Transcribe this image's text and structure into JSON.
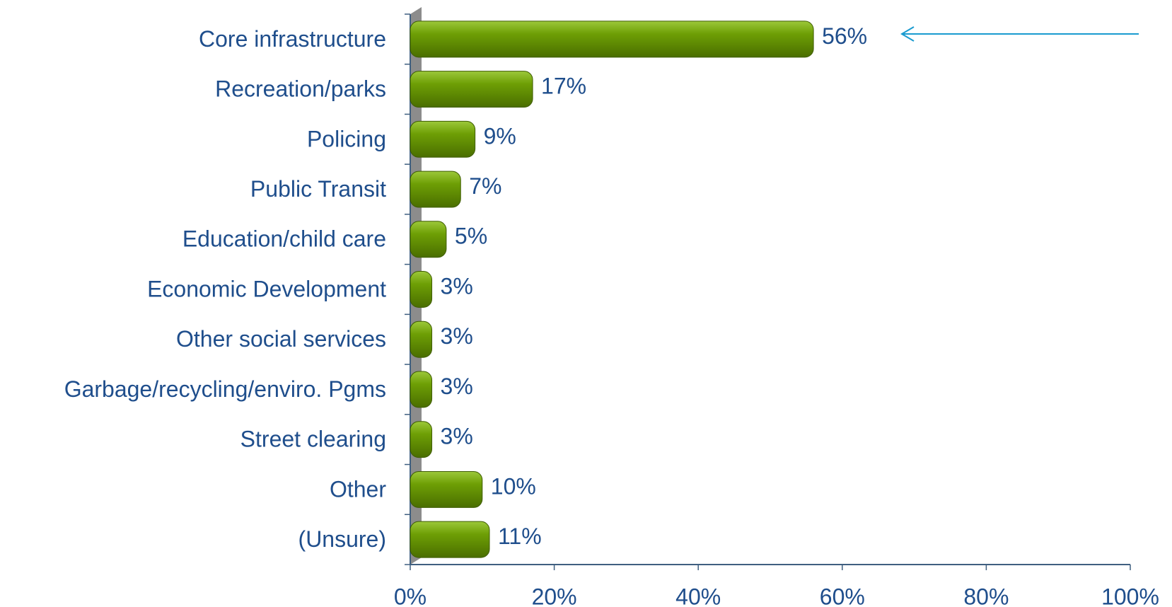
{
  "chart_data": {
    "type": "hbar",
    "categories": [
      "Core infrastructure",
      "Recreation/parks",
      "Policing",
      "Public Transit",
      "Education/child care",
      "Economic Development",
      "Other social services",
      "Garbage/recycling/enviro. Pgms",
      "Street clearing",
      "Other",
      "(Unsure)"
    ],
    "values": [
      56,
      17,
      9,
      7,
      5,
      3,
      3,
      3,
      3,
      10,
      11
    ],
    "value_labels": [
      "56%",
      "17%",
      "9%",
      "7%",
      "5%",
      "3%",
      "3%",
      "3%",
      "3%",
      "10%",
      "11%"
    ],
    "color": "#6a9c00",
    "xlim": [
      0,
      100
    ],
    "xticks": [
      {
        "value": 0,
        "label": "0%"
      },
      {
        "value": 20,
        "label": "20%"
      },
      {
        "value": 40,
        "label": "40%"
      },
      {
        "value": 60,
        "label": "60%"
      },
      {
        "value": 80,
        "label": "80%"
      },
      {
        "value": 100,
        "label": "100%"
      }
    ],
    "grid": false
  }
}
